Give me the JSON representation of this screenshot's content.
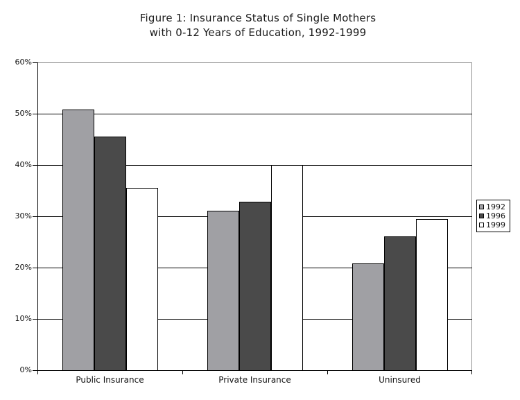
{
  "title": {
    "line1": "Figure 1: Insurance Status of Single Mothers",
    "line2": "with 0-12 Years of Education, 1992-1999"
  },
  "chart_data": {
    "type": "bar",
    "title": "Figure 1: Insurance Status of Single Mothers with 0-12 Years of Education, 1992-1999",
    "categories": [
      "Public Insurance",
      "Private Insurance",
      "Uninsured"
    ],
    "series": [
      {
        "name": "1992",
        "color": "#a0a0a4",
        "values": [
          50.8,
          31.1,
          20.8
        ]
      },
      {
        "name": "1996",
        "color": "#4a4a4a",
        "values": [
          45.5,
          32.9,
          26.1
        ]
      },
      {
        "name": "1999",
        "color": "#ffffff",
        "values": [
          35.5,
          40.0,
          29.4
        ]
      }
    ],
    "xlabel": "",
    "ylabel": "",
    "ylim": [
      0,
      60
    ],
    "ytick_step": 10,
    "ytick_labels": [
      "0%",
      "10%",
      "20%",
      "30%",
      "40%",
      "50%",
      "60%"
    ],
    "grid": true,
    "legend_position": "right"
  },
  "colors": {
    "background": "#ffffff",
    "gridline": "#000000",
    "axis": "#000000",
    "plot_border": "#909090",
    "bar_border": "#000000"
  }
}
